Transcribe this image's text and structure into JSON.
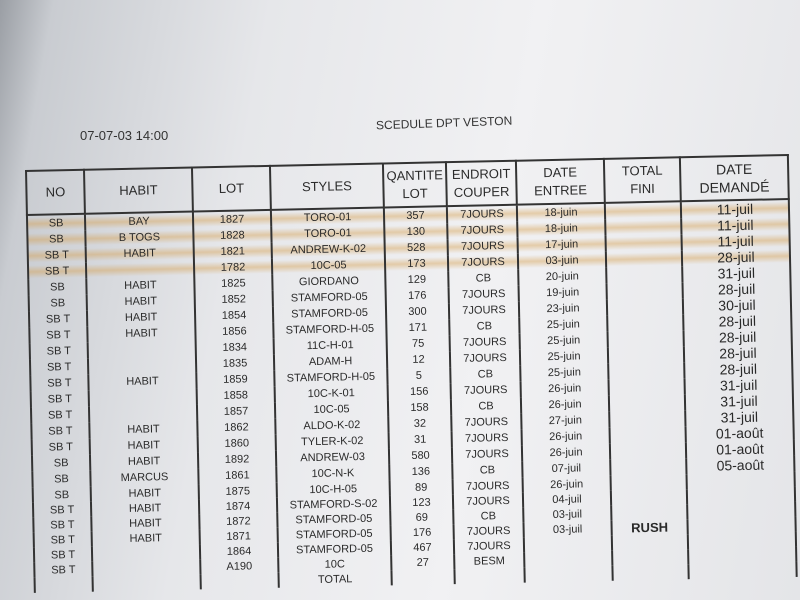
{
  "header": {
    "timestamp": "07-07-03 14:00",
    "title": "SCEDULE DPT VESTON"
  },
  "table": {
    "columns": [
      "NO",
      "HABIT",
      "LOT",
      "STYLES",
      "QANTITE\nLOT",
      "ENDROIT\nCOUPER",
      "DATE\nENTREE",
      "TOTAL\nFINI",
      "DATE\nDEMANDÉ"
    ],
    "rows": [
      [
        "SB",
        "BAY",
        "1827",
        "TORO-01",
        "357",
        "7JOURS",
        "18-juin",
        null,
        "11-juil"
      ],
      [
        "SB",
        "B TOGS",
        "1828",
        "TORO-01",
        "130",
        "7JOURS",
        "18-juin",
        null,
        "11-juil"
      ],
      [
        "SB T",
        "HABIT",
        "1821",
        "ANDREW-K-02",
        "528",
        "7JOURS",
        "17-juin",
        null,
        "11-juil"
      ],
      [
        "SB T",
        null,
        "1782",
        "10C-05",
        "173",
        "7JOURS",
        "03-juin",
        null,
        "28-juil"
      ],
      [
        "SB",
        "HABIT",
        "1825",
        "GIORDANO",
        "129",
        "CB",
        "20-juin",
        null,
        "31-juil"
      ],
      [
        "SB",
        "HABIT",
        "1852",
        "STAMFORD-05",
        "176",
        "7JOURS",
        "19-juin",
        null,
        "28-juil"
      ],
      [
        "SB T",
        "HABIT",
        "1854",
        "STAMFORD-05",
        "300",
        "7JOURS",
        "23-juin",
        null,
        "30-juil"
      ],
      [
        "SB T",
        "HABIT",
        "1856",
        "STAMFORD-H-05",
        "171",
        "CB",
        "25-juin",
        null,
        "28-juil"
      ],
      [
        "SB T",
        null,
        "1834",
        "11C-H-01",
        "75",
        "7JOURS",
        "25-juin",
        null,
        "28-juil"
      ],
      [
        "SB T",
        null,
        "1835",
        "ADAM-H",
        "12",
        "7JOURS",
        "25-juin",
        null,
        "28-juil"
      ],
      [
        "SB T",
        "HABIT",
        "1859",
        "STAMFORD-H-05",
        "5",
        "CB",
        "25-juin",
        null,
        "28-juil"
      ],
      [
        "SB T",
        null,
        "1858",
        "10C-K-01",
        "156",
        "7JOURS",
        "26-juin",
        null,
        "31-juil"
      ],
      [
        "SB T",
        null,
        "1857",
        "10C-05",
        "158",
        "CB",
        "26-juin",
        null,
        "31-juil"
      ],
      [
        "SB T",
        "HABIT",
        "1862",
        "ALDO-K-02",
        "32",
        "7JOURS",
        "27-juin",
        null,
        "31-juil"
      ],
      [
        "SB T",
        "HABIT",
        "1860",
        "TYLER-K-02",
        "31",
        "7JOURS",
        "26-juin",
        null,
        "01-août"
      ],
      [
        "SB",
        "HABIT",
        "1892",
        "ANDREW-03",
        "580",
        "7JOURS",
        "26-juin",
        null,
        "01-août"
      ],
      [
        "SB",
        "MARCUS",
        "1861",
        "10C-N-K",
        "136",
        "CB",
        "07-juil",
        null,
        "05-août"
      ],
      [
        "SB",
        "HABIT",
        "1875",
        "10C-H-05",
        "89",
        "7JOURS",
        "26-juin",
        null,
        null
      ],
      [
        "SB T",
        "HABIT",
        "1874",
        "STAMFORD-S-02",
        "123",
        "7JOURS",
        "04-juil",
        null,
        null
      ],
      [
        "SB T",
        "HABIT",
        "1872",
        "STAMFORD-05",
        "69",
        "CB",
        "03-juil",
        null,
        null
      ],
      [
        "SB T",
        "HABIT",
        "1871",
        "STAMFORD-05",
        "176",
        "7JOURS",
        "03-juil",
        "RUSH",
        null
      ],
      [
        "SB T",
        null,
        "1864",
        "STAMFORD-05",
        "467",
        "7JOURS",
        null,
        null,
        null
      ],
      [
        "SB T",
        null,
        "A190",
        "10C",
        "27",
        "BESM",
        null,
        null,
        null
      ],
      [
        null,
        null,
        null,
        "TOTAL",
        null,
        null,
        null,
        null,
        null
      ]
    ]
  }
}
